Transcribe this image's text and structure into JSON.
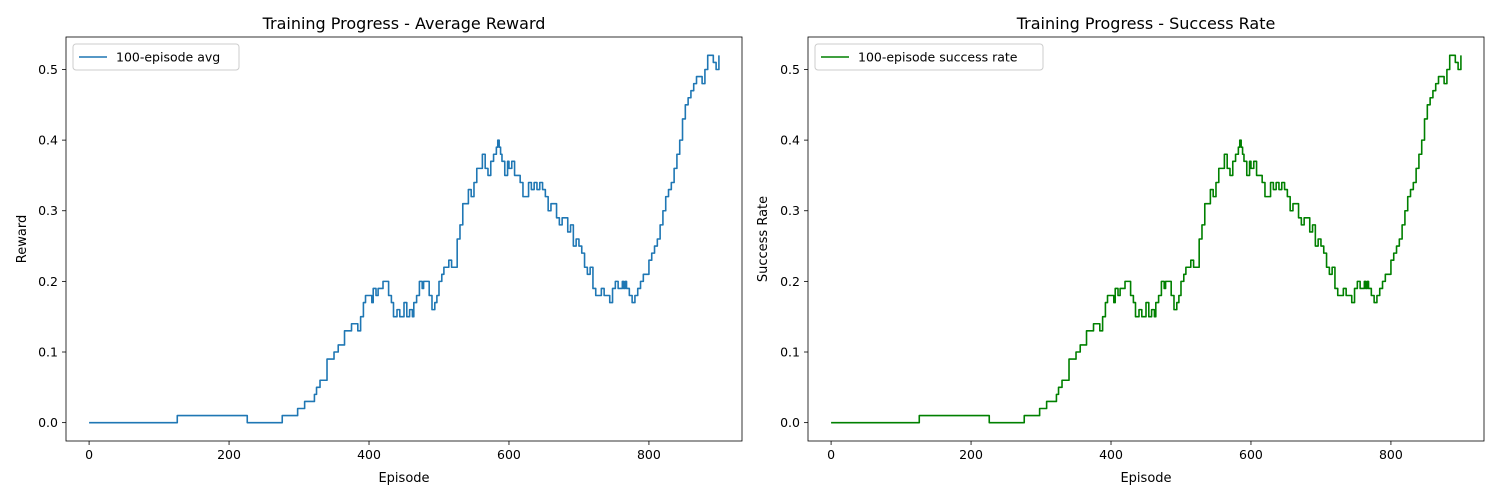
{
  "chart_data": [
    {
      "type": "line",
      "title": "Training Progress - Average Reward",
      "xlabel": "Episode",
      "ylabel": "Reward",
      "xlim": [
        -33,
        933
      ],
      "ylim": [
        -0.026,
        0.546
      ],
      "xticks": [
        0,
        200,
        400,
        600,
        800
      ],
      "yticks": [
        0.0,
        0.1,
        0.2,
        0.3,
        0.4,
        0.5
      ],
      "xtick_labels": [
        "0",
        "200",
        "400",
        "600",
        "800"
      ],
      "ytick_labels": [
        "0.0",
        "0.1",
        "0.2",
        "0.3",
        "0.4",
        "0.5"
      ],
      "grid": false,
      "legend_position": "upper-left",
      "series": [
        {
          "name": "100-episode avg",
          "color": "#1f77b4",
          "x": [
            0,
            125,
            126,
            225,
            226,
            275,
            276,
            295,
            298,
            305,
            308,
            318,
            322,
            325,
            330,
            338,
            340,
            345,
            350,
            356,
            360,
            365,
            370,
            372,
            375,
            380,
            384,
            388,
            392,
            395,
            400,
            404,
            406,
            410,
            413,
            417,
            420,
            425,
            428,
            432,
            435,
            440,
            444,
            446,
            450,
            454,
            458,
            462,
            464,
            468,
            472,
            476,
            478,
            482,
            486,
            490,
            494,
            497,
            500,
            504,
            507,
            510,
            514,
            518,
            522,
            526,
            530,
            534,
            538,
            542,
            546,
            550,
            554,
            558,
            562,
            566,
            570,
            574,
            578,
            582,
            584,
            586,
            588,
            590,
            594,
            598,
            600,
            604,
            608,
            612,
            616,
            620,
            624,
            628,
            632,
            636,
            640,
            644,
            648,
            652,
            656,
            660,
            664,
            668,
            672,
            676,
            680,
            684,
            688,
            692,
            696,
            700,
            704,
            708,
            712,
            716,
            720,
            724,
            728,
            732,
            736,
            740,
            744,
            748,
            752,
            756,
            760,
            762,
            764,
            766,
            768,
            772,
            776,
            780,
            784,
            788,
            792,
            796,
            800,
            804,
            808,
            812,
            816,
            820,
            824,
            828,
            832,
            836,
            840,
            844,
            848,
            852,
            856,
            860,
            864,
            868,
            872,
            876,
            880,
            884,
            888,
            892,
            896,
            900
          ],
          "values": [
            0.0,
            0.0,
            0.01,
            0.01,
            0.0,
            0.0,
            0.01,
            0.01,
            0.02,
            0.02,
            0.03,
            0.03,
            0.04,
            0.05,
            0.06,
            0.06,
            0.09,
            0.09,
            0.1,
            0.11,
            0.11,
            0.13,
            0.13,
            0.13,
            0.14,
            0.14,
            0.13,
            0.15,
            0.17,
            0.18,
            0.18,
            0.17,
            0.19,
            0.18,
            0.19,
            0.19,
            0.2,
            0.2,
            0.18,
            0.17,
            0.15,
            0.16,
            0.15,
            0.15,
            0.17,
            0.15,
            0.16,
            0.15,
            0.17,
            0.18,
            0.2,
            0.19,
            0.2,
            0.2,
            0.18,
            0.16,
            0.17,
            0.18,
            0.2,
            0.21,
            0.22,
            0.22,
            0.23,
            0.22,
            0.22,
            0.26,
            0.28,
            0.31,
            0.31,
            0.33,
            0.32,
            0.34,
            0.36,
            0.36,
            0.38,
            0.36,
            0.35,
            0.37,
            0.38,
            0.39,
            0.4,
            0.39,
            0.38,
            0.37,
            0.35,
            0.37,
            0.36,
            0.37,
            0.35,
            0.35,
            0.34,
            0.32,
            0.32,
            0.34,
            0.33,
            0.34,
            0.33,
            0.34,
            0.33,
            0.32,
            0.3,
            0.31,
            0.31,
            0.29,
            0.28,
            0.29,
            0.29,
            0.27,
            0.28,
            0.25,
            0.26,
            0.25,
            0.24,
            0.22,
            0.21,
            0.22,
            0.19,
            0.18,
            0.18,
            0.19,
            0.18,
            0.18,
            0.17,
            0.19,
            0.2,
            0.19,
            0.19,
            0.2,
            0.19,
            0.2,
            0.19,
            0.18,
            0.17,
            0.18,
            0.19,
            0.2,
            0.21,
            0.21,
            0.23,
            0.24,
            0.25,
            0.26,
            0.28,
            0.3,
            0.32,
            0.33,
            0.34,
            0.36,
            0.38,
            0.4,
            0.43,
            0.45,
            0.46,
            0.47,
            0.48,
            0.49,
            0.49,
            0.48,
            0.5,
            0.52,
            0.52,
            0.51,
            0.5,
            0.52
          ]
        }
      ]
    },
    {
      "type": "line",
      "title": "Training Progress - Success Rate",
      "xlabel": "Episode",
      "ylabel": "Success Rate",
      "xlim": [
        -33,
        933
      ],
      "ylim": [
        -0.026,
        0.546
      ],
      "xticks": [
        0,
        200,
        400,
        600,
        800
      ],
      "yticks": [
        0.0,
        0.1,
        0.2,
        0.3,
        0.4,
        0.5
      ],
      "xtick_labels": [
        "0",
        "200",
        "400",
        "600",
        "800"
      ],
      "ytick_labels": [
        "0.0",
        "0.1",
        "0.2",
        "0.3",
        "0.4",
        "0.5"
      ],
      "grid": false,
      "legend_position": "upper-left",
      "series": [
        {
          "name": "100-episode success rate",
          "color": "#008000",
          "x": [
            0,
            125,
            126,
            225,
            226,
            275,
            276,
            295,
            298,
            305,
            308,
            318,
            322,
            325,
            330,
            338,
            340,
            345,
            350,
            356,
            360,
            365,
            370,
            372,
            375,
            380,
            384,
            388,
            392,
            395,
            400,
            404,
            406,
            410,
            413,
            417,
            420,
            425,
            428,
            432,
            435,
            440,
            444,
            446,
            450,
            454,
            458,
            462,
            464,
            468,
            472,
            476,
            478,
            482,
            486,
            490,
            494,
            497,
            500,
            504,
            507,
            510,
            514,
            518,
            522,
            526,
            530,
            534,
            538,
            542,
            546,
            550,
            554,
            558,
            562,
            566,
            570,
            574,
            578,
            582,
            584,
            586,
            588,
            590,
            594,
            598,
            600,
            604,
            608,
            612,
            616,
            620,
            624,
            628,
            632,
            636,
            640,
            644,
            648,
            652,
            656,
            660,
            664,
            668,
            672,
            676,
            680,
            684,
            688,
            692,
            696,
            700,
            704,
            708,
            712,
            716,
            720,
            724,
            728,
            732,
            736,
            740,
            744,
            748,
            752,
            756,
            760,
            762,
            764,
            766,
            768,
            772,
            776,
            780,
            784,
            788,
            792,
            796,
            800,
            804,
            808,
            812,
            816,
            820,
            824,
            828,
            832,
            836,
            840,
            844,
            848,
            852,
            856,
            860,
            864,
            868,
            872,
            876,
            880,
            884,
            888,
            892,
            896,
            900
          ],
          "values": [
            0.0,
            0.0,
            0.01,
            0.01,
            0.0,
            0.0,
            0.01,
            0.01,
            0.02,
            0.02,
            0.03,
            0.03,
            0.04,
            0.05,
            0.06,
            0.06,
            0.09,
            0.09,
            0.1,
            0.11,
            0.11,
            0.13,
            0.13,
            0.13,
            0.14,
            0.14,
            0.13,
            0.15,
            0.17,
            0.18,
            0.18,
            0.17,
            0.19,
            0.18,
            0.19,
            0.19,
            0.2,
            0.2,
            0.18,
            0.17,
            0.15,
            0.16,
            0.15,
            0.15,
            0.17,
            0.15,
            0.16,
            0.15,
            0.17,
            0.18,
            0.2,
            0.19,
            0.2,
            0.2,
            0.18,
            0.16,
            0.17,
            0.18,
            0.2,
            0.21,
            0.22,
            0.22,
            0.23,
            0.22,
            0.22,
            0.26,
            0.28,
            0.31,
            0.31,
            0.33,
            0.32,
            0.34,
            0.36,
            0.36,
            0.38,
            0.36,
            0.35,
            0.37,
            0.38,
            0.39,
            0.4,
            0.39,
            0.38,
            0.37,
            0.35,
            0.37,
            0.36,
            0.37,
            0.35,
            0.35,
            0.34,
            0.32,
            0.32,
            0.34,
            0.33,
            0.34,
            0.33,
            0.34,
            0.33,
            0.32,
            0.3,
            0.31,
            0.31,
            0.29,
            0.28,
            0.29,
            0.29,
            0.27,
            0.28,
            0.25,
            0.26,
            0.25,
            0.24,
            0.22,
            0.21,
            0.22,
            0.19,
            0.18,
            0.18,
            0.19,
            0.18,
            0.18,
            0.17,
            0.19,
            0.2,
            0.19,
            0.19,
            0.2,
            0.19,
            0.2,
            0.19,
            0.18,
            0.17,
            0.18,
            0.19,
            0.2,
            0.21,
            0.21,
            0.23,
            0.24,
            0.25,
            0.26,
            0.28,
            0.3,
            0.32,
            0.33,
            0.34,
            0.36,
            0.38,
            0.4,
            0.43,
            0.45,
            0.46,
            0.47,
            0.48,
            0.49,
            0.49,
            0.48,
            0.5,
            0.52,
            0.52,
            0.51,
            0.5,
            0.52
          ]
        }
      ]
    }
  ]
}
